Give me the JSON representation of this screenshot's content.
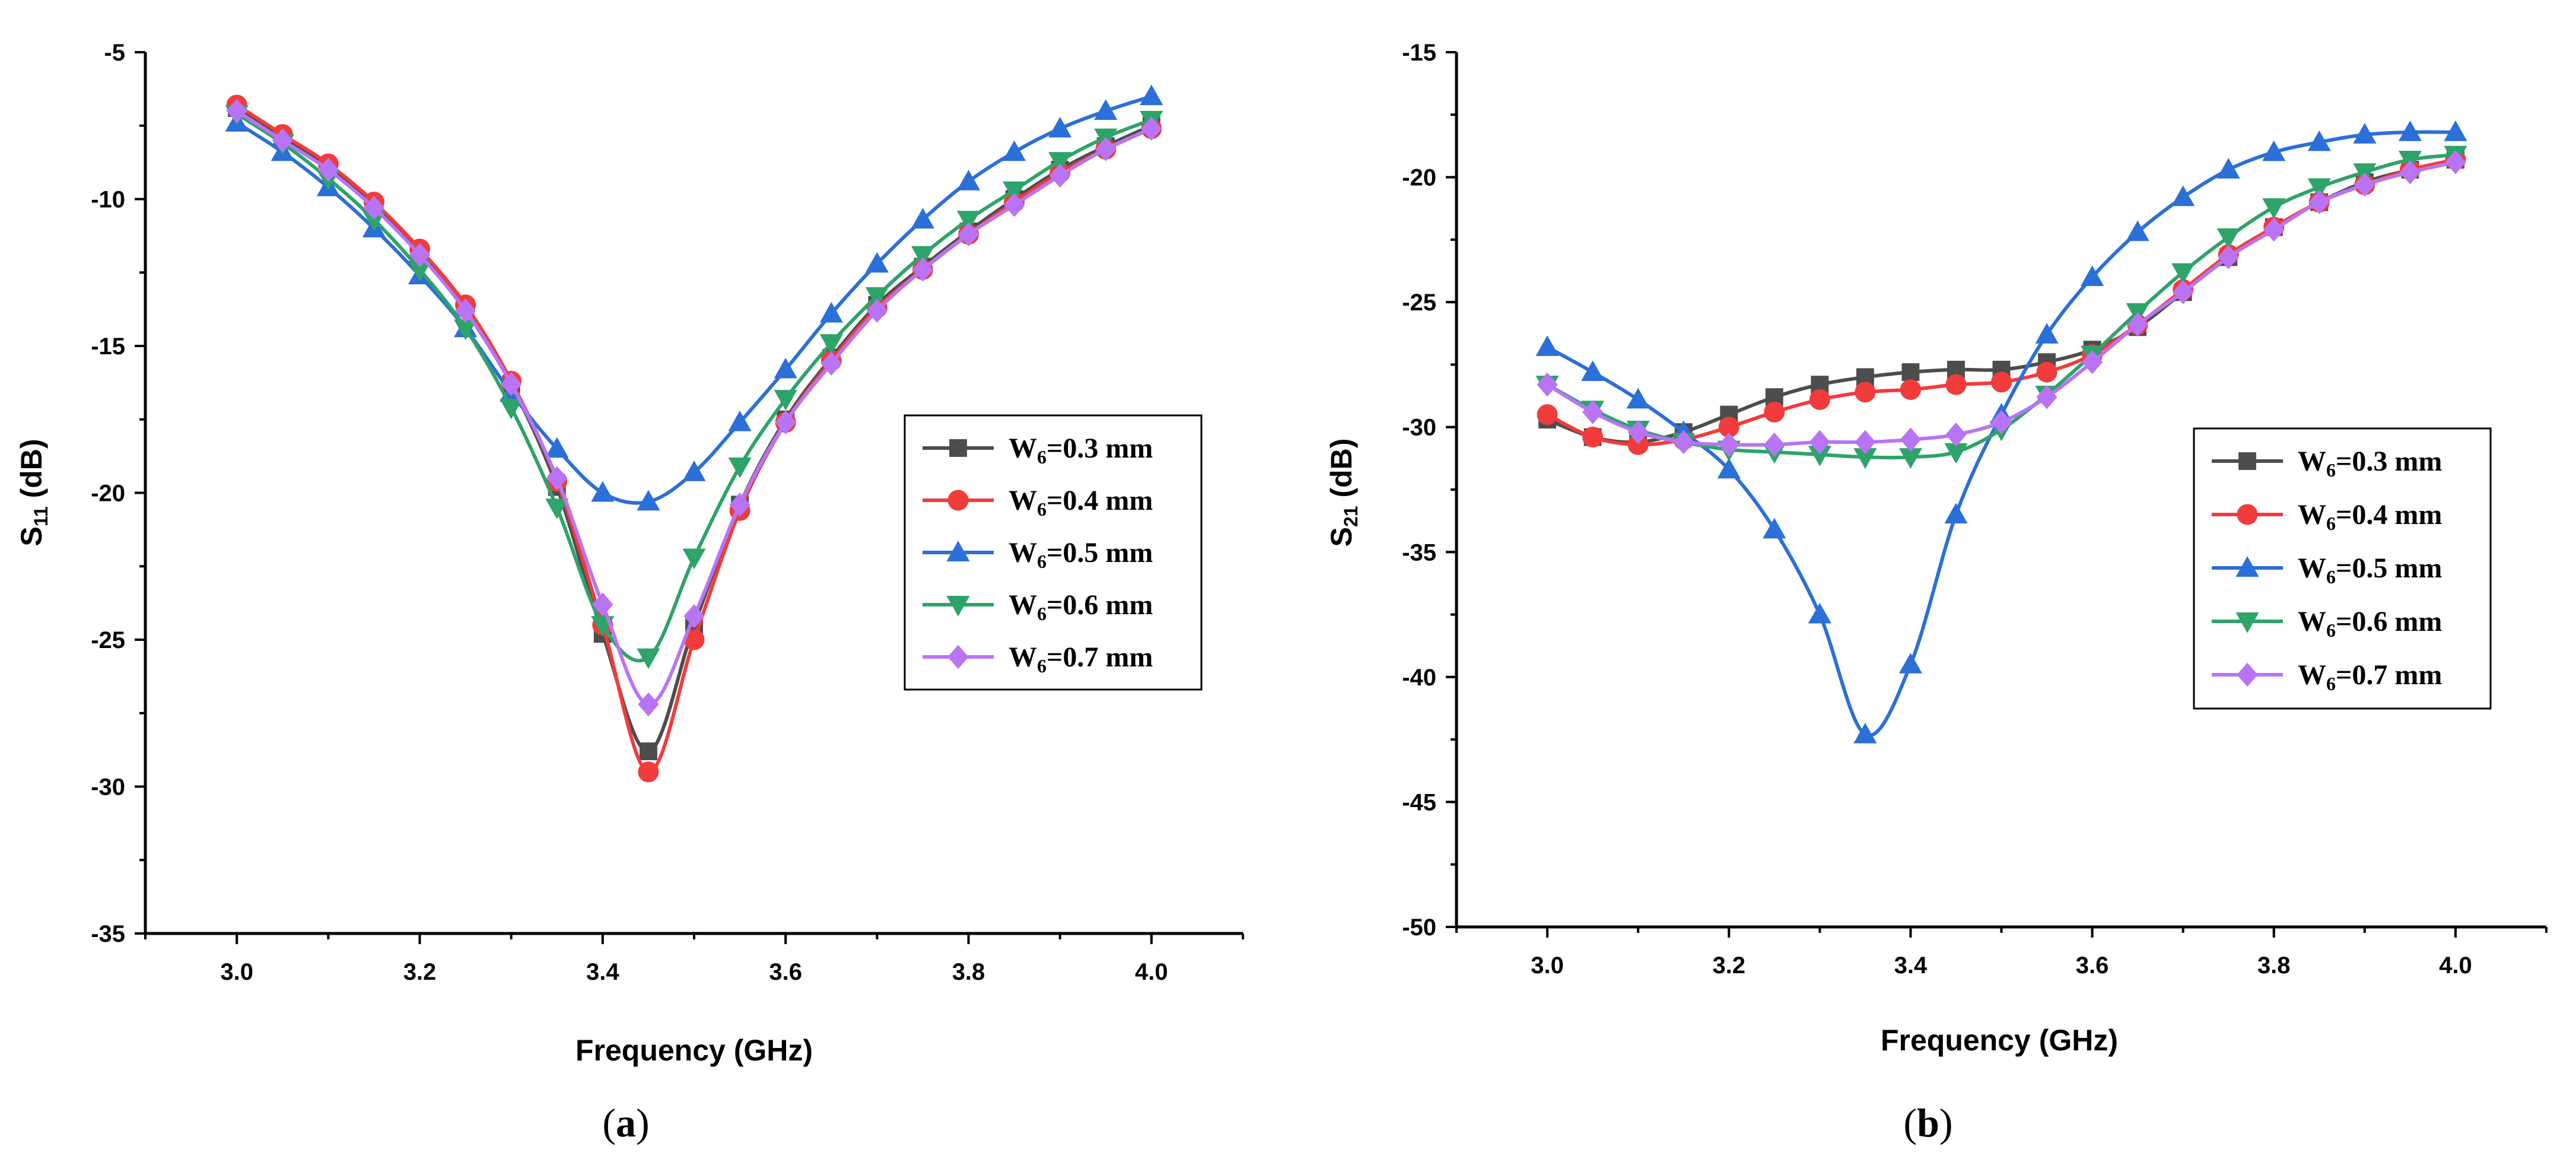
{
  "panels": [
    {
      "label_open": "(",
      "label_letter": "a",
      "label_close": ")"
    },
    {
      "label_open": "(",
      "label_letter": "b",
      "label_close": ")"
    }
  ],
  "chart_data": [
    {
      "type": "line",
      "title": "",
      "xlabel": "Frequency (GHz)",
      "ylabel": {
        "main": "S",
        "sub": "11",
        "unit": " (dB)"
      },
      "xlim": [
        2.9,
        4.1
      ],
      "ylim": [
        -35,
        -5
      ],
      "xticks": [
        3.0,
        3.2,
        3.4,
        3.6,
        3.8,
        4.0
      ],
      "xtick_labels": [
        "3.0",
        "3.2",
        "3.4",
        "3.6",
        "3.8",
        "4.0"
      ],
      "yticks": [
        -35,
        -30,
        -25,
        -20,
        -15,
        -10,
        -5
      ],
      "ytick_labels": [
        "-35",
        "-30",
        "-25",
        "-20",
        "-15",
        "-10",
        "-5"
      ],
      "legend_position": "center-right",
      "x": [
        3.0,
        3.05,
        3.1,
        3.15,
        3.2,
        3.25,
        3.3,
        3.35,
        3.4,
        3.45,
        3.5,
        3.55,
        3.6,
        3.65,
        3.7,
        3.75,
        3.8,
        3.85,
        3.9,
        3.95,
        4.0
      ],
      "series": [
        {
          "name": "W6=0.3 mm",
          "label_main": "W",
          "label_sub": "6",
          "label_rest": "=0.3 mm",
          "color": "#4d4d4d",
          "marker": "square",
          "values": [
            -6.9,
            -7.9,
            -8.9,
            -10.2,
            -11.8,
            -13.7,
            -16.3,
            -19.8,
            -24.8,
            -28.8,
            -24.5,
            -20.4,
            -17.5,
            -15.4,
            -13.6,
            -12.3,
            -11.1,
            -10.0,
            -9.0,
            -8.2,
            -7.5
          ]
        },
        {
          "name": "W6=0.4 mm",
          "label_main": "W",
          "label_sub": "6",
          "label_rest": "=0.4 mm",
          "color": "#f23b3b",
          "marker": "circle",
          "values": [
            -6.8,
            -7.8,
            -8.8,
            -10.1,
            -11.7,
            -13.6,
            -16.2,
            -19.6,
            -24.5,
            -29.5,
            -25.0,
            -20.6,
            -17.6,
            -15.5,
            -13.7,
            -12.4,
            -11.2,
            -10.1,
            -9.1,
            -8.3,
            -7.6
          ]
        },
        {
          "name": "W6=0.5 mm",
          "label_main": "W",
          "label_sub": "6",
          "label_rest": "=0.5 mm",
          "color": "#2b6fd9",
          "marker": "triangle-up",
          "values": [
            -7.4,
            -8.4,
            -9.6,
            -11.0,
            -12.6,
            -14.4,
            -16.6,
            -18.5,
            -20.0,
            -20.3,
            -19.3,
            -17.6,
            -15.8,
            -13.9,
            -12.2,
            -10.7,
            -9.4,
            -8.4,
            -7.6,
            -7.0,
            -6.5
          ]
        },
        {
          "name": "W6=0.6 mm",
          "label_main": "W",
          "label_sub": "6",
          "label_rest": "=0.6 mm",
          "color": "#2ea36a",
          "marker": "triangle-down",
          "values": [
            -7.1,
            -8.1,
            -9.3,
            -10.7,
            -12.4,
            -14.4,
            -17.1,
            -20.5,
            -24.5,
            -25.6,
            -22.2,
            -19.1,
            -16.8,
            -14.9,
            -13.3,
            -11.9,
            -10.7,
            -9.7,
            -8.7,
            -7.9,
            -7.3
          ]
        },
        {
          "name": "W6=0.7 mm",
          "label_main": "W",
          "label_sub": "6",
          "label_rest": "=0.7 mm",
          "color": "#b974f5",
          "marker": "diamond",
          "values": [
            -7.0,
            -8.0,
            -9.0,
            -10.3,
            -11.9,
            -13.8,
            -16.3,
            -19.5,
            -23.8,
            -27.2,
            -24.2,
            -20.4,
            -17.6,
            -15.6,
            -13.8,
            -12.4,
            -11.2,
            -10.2,
            -9.2,
            -8.3,
            -7.6
          ]
        }
      ]
    },
    {
      "type": "line",
      "title": "",
      "xlabel": "Frequency (GHz)",
      "ylabel": {
        "main": "S",
        "sub": "21",
        "unit": " (dB)"
      },
      "xlim": [
        2.9,
        4.1
      ],
      "ylim": [
        -50,
        -15
      ],
      "xticks": [
        3.0,
        3.2,
        3.4,
        3.6,
        3.8,
        4.0
      ],
      "xtick_labels": [
        "3.0",
        "3.2",
        "3.4",
        "3.6",
        "3.8",
        "4.0"
      ],
      "yticks": [
        -50,
        -45,
        -40,
        -35,
        -30,
        -25,
        -20,
        -15
      ],
      "ytick_labels": [
        "-50",
        "-45",
        "-40",
        "-35",
        "-30",
        "-25",
        "-20",
        "-15"
      ],
      "legend_position": "center-right",
      "x": [
        3.0,
        3.05,
        3.1,
        3.15,
        3.2,
        3.25,
        3.3,
        3.35,
        3.4,
        3.45,
        3.5,
        3.55,
        3.6,
        3.65,
        3.7,
        3.75,
        3.8,
        3.85,
        3.9,
        3.95,
        4.0
      ],
      "series": [
        {
          "name": "W6=0.3 mm",
          "label_main": "W",
          "label_sub": "6",
          "label_rest": "=0.3 mm",
          "color": "#4d4d4d",
          "marker": "square",
          "values": [
            -29.7,
            -30.4,
            -30.6,
            -30.2,
            -29.5,
            -28.8,
            -28.3,
            -28.0,
            -27.8,
            -27.7,
            -27.7,
            -27.4,
            -26.9,
            -26.0,
            -24.6,
            -23.2,
            -22.0,
            -21.0,
            -20.2,
            -19.7,
            -19.3
          ]
        },
        {
          "name": "W6=0.4 mm",
          "label_main": "W",
          "label_sub": "6",
          "label_rest": "=0.4 mm",
          "color": "#f23b3b",
          "marker": "circle",
          "values": [
            -29.5,
            -30.4,
            -30.7,
            -30.5,
            -30.0,
            -29.4,
            -28.9,
            -28.6,
            -28.5,
            -28.3,
            -28.2,
            -27.8,
            -27.1,
            -25.9,
            -24.5,
            -23.1,
            -22.0,
            -21.0,
            -20.3,
            -19.7,
            -19.3
          ]
        },
        {
          "name": "W6=0.5 mm",
          "label_main": "W",
          "label_sub": "6",
          "label_rest": "=0.5 mm",
          "color": "#2b6fd9",
          "marker": "triangle-up",
          "values": [
            -26.8,
            -27.8,
            -28.9,
            -30.2,
            -31.7,
            -34.1,
            -37.5,
            -42.3,
            -39.5,
            -33.5,
            -29.5,
            -26.3,
            -24.0,
            -22.2,
            -20.8,
            -19.7,
            -19.0,
            -18.6,
            -18.3,
            -18.2,
            -18.2
          ]
        },
        {
          "name": "W6=0.6 mm",
          "label_main": "W",
          "label_sub": "6",
          "label_rest": "=0.6 mm",
          "color": "#2ea36a",
          "marker": "triangle-down",
          "values": [
            -28.3,
            -29.3,
            -30.1,
            -30.6,
            -30.9,
            -31.0,
            -31.1,
            -31.2,
            -31.2,
            -31.0,
            -30.1,
            -28.7,
            -27.1,
            -25.4,
            -23.8,
            -22.4,
            -21.2,
            -20.4,
            -19.8,
            -19.3,
            -19.1
          ]
        },
        {
          "name": "W6=0.7 mm",
          "label_main": "W",
          "label_sub": "6",
          "label_rest": "=0.7 mm",
          "color": "#b974f5",
          "marker": "diamond",
          "values": [
            -28.3,
            -29.4,
            -30.2,
            -30.6,
            -30.7,
            -30.7,
            -30.6,
            -30.6,
            -30.5,
            -30.3,
            -29.8,
            -28.8,
            -27.4,
            -25.9,
            -24.6,
            -23.2,
            -22.1,
            -21.0,
            -20.3,
            -19.8,
            -19.4
          ]
        }
      ]
    }
  ]
}
